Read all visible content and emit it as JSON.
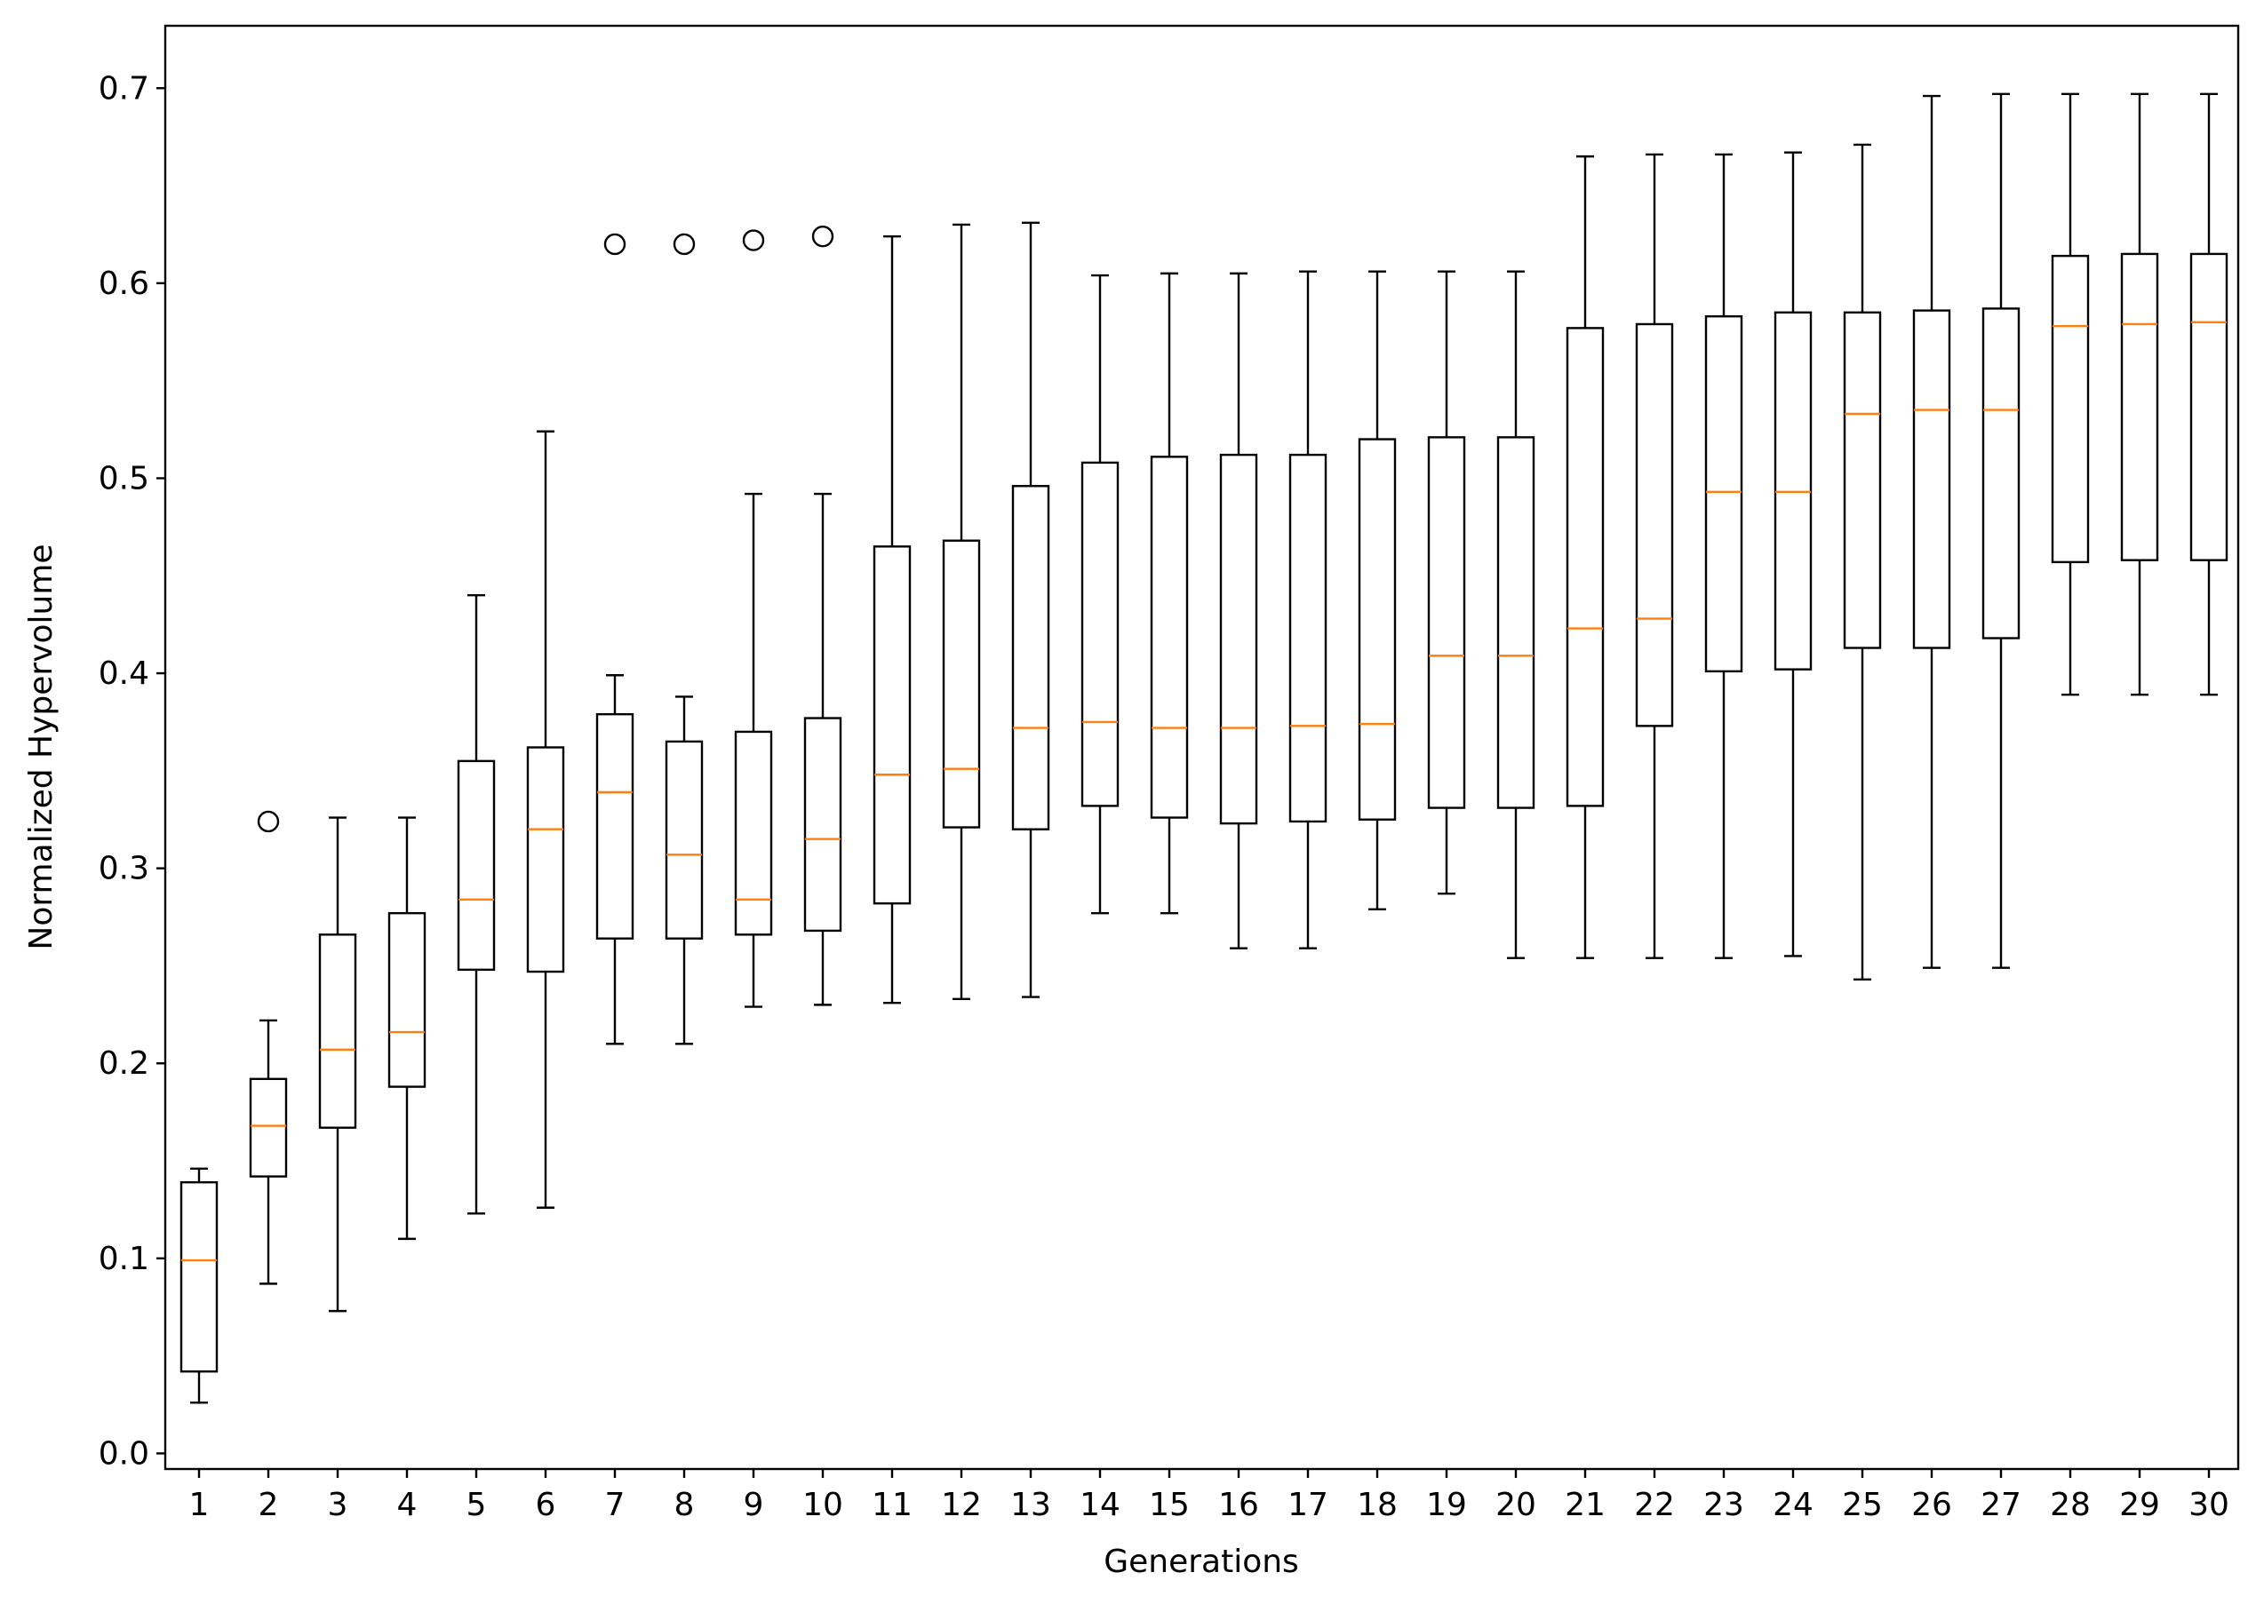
{
  "chart_data": {
    "type": "boxplot",
    "title": "",
    "xlabel": "Generations",
    "ylabel": "Normalized Hypervolume",
    "ylim": [
      -0.008,
      0.732
    ],
    "y_ticks": [
      "0.0",
      "0.1",
      "0.2",
      "0.3",
      "0.4",
      "0.5",
      "0.6",
      "0.7"
    ],
    "categories": [
      "1",
      "2",
      "3",
      "4",
      "5",
      "6",
      "7",
      "8",
      "9",
      "10",
      "11",
      "12",
      "13",
      "14",
      "15",
      "16",
      "17",
      "18",
      "19",
      "20",
      "21",
      "22",
      "23",
      "24",
      "25",
      "26",
      "27",
      "28",
      "29",
      "30"
    ],
    "grid": false,
    "colors": {
      "box": "#000000",
      "median": "#ff7f0e",
      "flier": "#000000"
    },
    "boxes": [
      {
        "whislo": 0.026,
        "q1": 0.042,
        "med": 0.099,
        "q3": 0.139,
        "whishi": 0.146,
        "fliers": []
      },
      {
        "whislo": 0.087,
        "q1": 0.142,
        "med": 0.168,
        "q3": 0.192,
        "whishi": 0.222,
        "fliers": [
          0.324
        ]
      },
      {
        "whislo": 0.073,
        "q1": 0.167,
        "med": 0.207,
        "q3": 0.266,
        "whishi": 0.326,
        "fliers": []
      },
      {
        "whislo": 0.11,
        "q1": 0.188,
        "med": 0.216,
        "q3": 0.277,
        "whishi": 0.326,
        "fliers": []
      },
      {
        "whislo": 0.123,
        "q1": 0.248,
        "med": 0.284,
        "q3": 0.355,
        "whishi": 0.44,
        "fliers": []
      },
      {
        "whislo": 0.126,
        "q1": 0.247,
        "med": 0.32,
        "q3": 0.362,
        "whishi": 0.524,
        "fliers": []
      },
      {
        "whislo": 0.21,
        "q1": 0.264,
        "med": 0.339,
        "q3": 0.379,
        "whishi": 0.399,
        "fliers": [
          0.62
        ]
      },
      {
        "whislo": 0.21,
        "q1": 0.264,
        "med": 0.307,
        "q3": 0.365,
        "whishi": 0.388,
        "fliers": [
          0.62
        ]
      },
      {
        "whislo": 0.229,
        "q1": 0.266,
        "med": 0.284,
        "q3": 0.37,
        "whishi": 0.492,
        "fliers": [
          0.622
        ]
      },
      {
        "whislo": 0.23,
        "q1": 0.268,
        "med": 0.315,
        "q3": 0.377,
        "whishi": 0.492,
        "fliers": [
          0.624
        ]
      },
      {
        "whislo": 0.231,
        "q1": 0.282,
        "med": 0.348,
        "q3": 0.465,
        "whishi": 0.624,
        "fliers": []
      },
      {
        "whislo": 0.233,
        "q1": 0.321,
        "med": 0.351,
        "q3": 0.468,
        "whishi": 0.63,
        "fliers": []
      },
      {
        "whislo": 0.234,
        "q1": 0.32,
        "med": 0.372,
        "q3": 0.496,
        "whishi": 0.631,
        "fliers": []
      },
      {
        "whislo": 0.277,
        "q1": 0.332,
        "med": 0.375,
        "q3": 0.508,
        "whishi": 0.604,
        "fliers": []
      },
      {
        "whislo": 0.277,
        "q1": 0.326,
        "med": 0.372,
        "q3": 0.511,
        "whishi": 0.605,
        "fliers": []
      },
      {
        "whislo": 0.259,
        "q1": 0.323,
        "med": 0.372,
        "q3": 0.512,
        "whishi": 0.605,
        "fliers": []
      },
      {
        "whislo": 0.259,
        "q1": 0.324,
        "med": 0.373,
        "q3": 0.512,
        "whishi": 0.606,
        "fliers": []
      },
      {
        "whislo": 0.279,
        "q1": 0.325,
        "med": 0.374,
        "q3": 0.52,
        "whishi": 0.606,
        "fliers": []
      },
      {
        "whislo": 0.287,
        "q1": 0.331,
        "med": 0.409,
        "q3": 0.521,
        "whishi": 0.606,
        "fliers": []
      },
      {
        "whislo": 0.254,
        "q1": 0.331,
        "med": 0.409,
        "q3": 0.521,
        "whishi": 0.606,
        "fliers": []
      },
      {
        "whislo": 0.254,
        "q1": 0.332,
        "med": 0.423,
        "q3": 0.577,
        "whishi": 0.665,
        "fliers": []
      },
      {
        "whislo": 0.254,
        "q1": 0.373,
        "med": 0.428,
        "q3": 0.579,
        "whishi": 0.666,
        "fliers": []
      },
      {
        "whislo": 0.254,
        "q1": 0.401,
        "med": 0.493,
        "q3": 0.583,
        "whishi": 0.666,
        "fliers": []
      },
      {
        "whislo": 0.255,
        "q1": 0.402,
        "med": 0.493,
        "q3": 0.585,
        "whishi": 0.667,
        "fliers": []
      },
      {
        "whislo": 0.243,
        "q1": 0.413,
        "med": 0.533,
        "q3": 0.585,
        "whishi": 0.671,
        "fliers": []
      },
      {
        "whislo": 0.249,
        "q1": 0.413,
        "med": 0.535,
        "q3": 0.586,
        "whishi": 0.696,
        "fliers": []
      },
      {
        "whislo": 0.249,
        "q1": 0.418,
        "med": 0.535,
        "q3": 0.587,
        "whishi": 0.697,
        "fliers": []
      },
      {
        "whislo": 0.389,
        "q1": 0.457,
        "med": 0.578,
        "q3": 0.614,
        "whishi": 0.697,
        "fliers": []
      },
      {
        "whislo": 0.389,
        "q1": 0.458,
        "med": 0.579,
        "q3": 0.615,
        "whishi": 0.697,
        "fliers": []
      },
      {
        "whislo": 0.389,
        "q1": 0.458,
        "med": 0.58,
        "q3": 0.615,
        "whishi": 0.697,
        "fliers": []
      }
    ]
  }
}
